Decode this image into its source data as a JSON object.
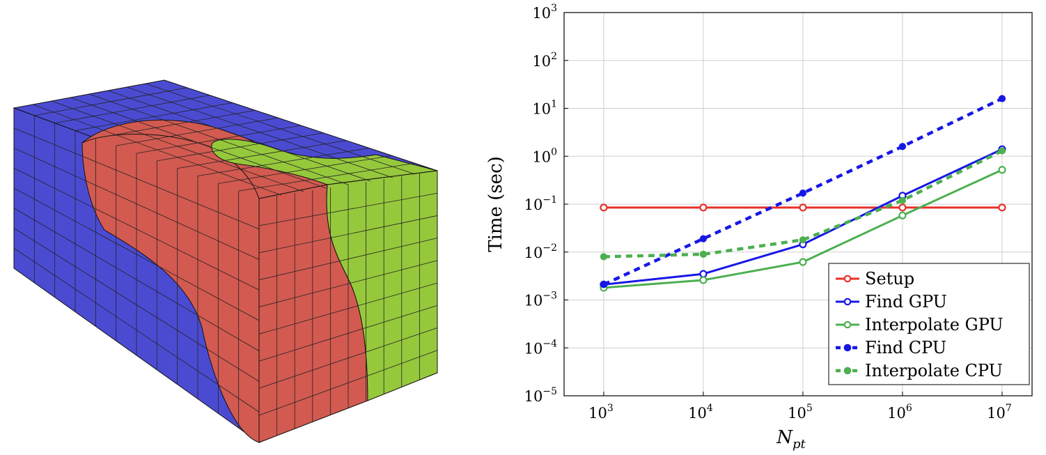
{
  "mesh": {
    "regions": [
      {
        "name": "blue-region",
        "color": "#4b4bd2"
      },
      {
        "name": "red-region",
        "color": "#d25a50"
      },
      {
        "name": "green-region",
        "color": "#96c83c"
      }
    ],
    "edge_color": "#222222"
  },
  "chart_data": {
    "type": "line",
    "xscale": "log",
    "yscale": "log",
    "xlabel_base": "N",
    "xlabel_sub": "pt",
    "ylabel": "Time (sec)",
    "xlim": [
      400,
      20000000
    ],
    "ylim": [
      1e-05,
      1000
    ],
    "grid": true,
    "legend_position": "bottom-right",
    "x": [
      1000,
      10000,
      100000,
      1000000,
      10000000
    ],
    "xticks": [
      {
        "value": 1000,
        "base": "10",
        "exp": "3"
      },
      {
        "value": 10000,
        "base": "10",
        "exp": "4"
      },
      {
        "value": 100000,
        "base": "10",
        "exp": "5"
      },
      {
        "value": 1000000,
        "base": "10",
        "exp": "6"
      },
      {
        "value": 10000000,
        "base": "10",
        "exp": "7"
      }
    ],
    "yticks": [
      {
        "value": 1e-05,
        "base": "10",
        "exp": "−5"
      },
      {
        "value": 0.0001,
        "base": "10",
        "exp": "−4"
      },
      {
        "value": 0.001,
        "base": "10",
        "exp": "−3"
      },
      {
        "value": 0.01,
        "base": "10",
        "exp": "−2"
      },
      {
        "value": 0.1,
        "base": "10",
        "exp": "−1"
      },
      {
        "value": 1,
        "base": "10",
        "exp": "0"
      },
      {
        "value": 10,
        "base": "10",
        "exp": "1"
      },
      {
        "value": 100,
        "base": "10",
        "exp": "2"
      },
      {
        "value": 1000,
        "base": "10",
        "exp": "3"
      }
    ],
    "series": [
      {
        "name": "Setup",
        "color": "#e8302a",
        "dashed": false,
        "marker": "open-circle",
        "values": [
          0.085,
          0.085,
          0.085,
          0.085,
          0.085
        ]
      },
      {
        "name": "Find GPU",
        "color": "#1717e6",
        "dashed": false,
        "marker": "open-circle",
        "values": [
          0.0021,
          0.0035,
          0.0145,
          0.15,
          1.4
        ]
      },
      {
        "name": "Interpolate GPU",
        "color": "#4caf50",
        "dashed": false,
        "marker": "open-circle",
        "values": [
          0.0018,
          0.0026,
          0.0062,
          0.058,
          0.52
        ]
      },
      {
        "name": "Find CPU",
        "color": "#1717e6",
        "dashed": true,
        "marker": "filled-circle",
        "values": [
          0.0021,
          0.019,
          0.17,
          1.6,
          16
        ]
      },
      {
        "name": "Interpolate CPU",
        "color": "#4caf50",
        "dashed": true,
        "marker": "filled-circle",
        "values": [
          0.008,
          0.009,
          0.018,
          0.12,
          1.3
        ]
      }
    ]
  }
}
